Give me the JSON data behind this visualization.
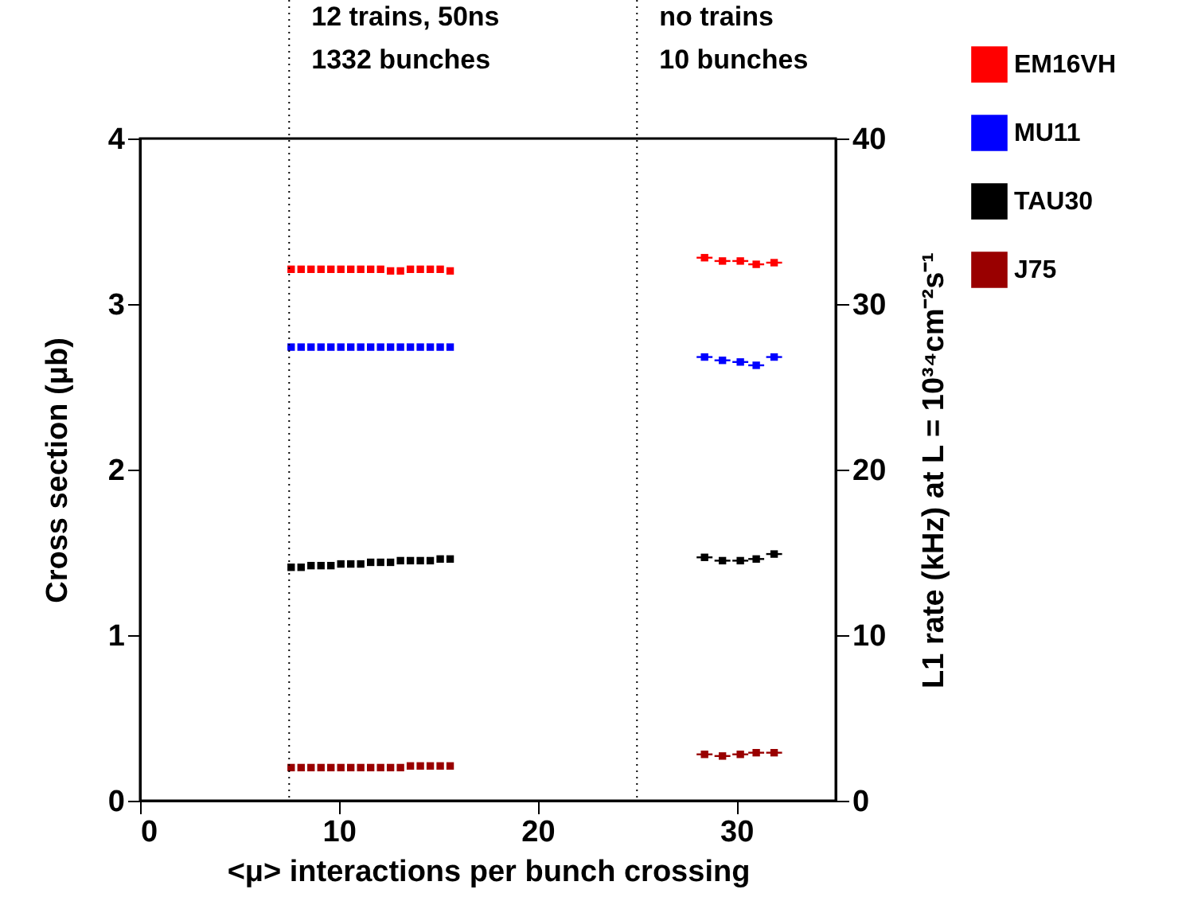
{
  "chart_data": {
    "type": "scatter",
    "xlabel": "<μ> interactions per bunch crossing",
    "ylabel": "Cross section (μb)",
    "y2label": "L1 rate (kHz) at L = 10³⁴cm⁻²s⁻¹",
    "x": [
      7.6,
      8.1,
      8.6,
      9.1,
      9.6,
      10.1,
      10.6,
      11.1,
      11.6,
      12.1,
      12.6,
      13.1,
      13.6,
      14.1,
      14.6,
      15.1,
      15.6,
      28.4,
      29.3,
      30.2,
      31.0,
      31.9
    ],
    "xlim": [
      0,
      35
    ],
    "xticks": [
      0,
      10,
      20,
      30
    ],
    "ylim": [
      0,
      4
    ],
    "yticks": [
      0,
      1,
      2,
      3,
      4
    ],
    "y2lim": [
      0,
      40
    ],
    "y2ticks": [
      0,
      10,
      20,
      30,
      40
    ],
    "marker": "square",
    "grid": false,
    "legend": "right",
    "series": [
      {
        "name": "EM16VH",
        "color": "#ff0000",
        "values": [
          3.21,
          3.21,
          3.21,
          3.21,
          3.21,
          3.21,
          3.21,
          3.21,
          3.21,
          3.21,
          3.2,
          3.2,
          3.21,
          3.21,
          3.21,
          3.21,
          3.2,
          3.28,
          3.26,
          3.26,
          3.24,
          3.25
        ],
        "xerrors": [
          null,
          null,
          null,
          null,
          null,
          null,
          null,
          null,
          null,
          null,
          null,
          null,
          null,
          null,
          null,
          null,
          null,
          0.4,
          0.4,
          0.4,
          0.4,
          0.4
        ]
      },
      {
        "name": "MU11",
        "color": "#0000ff",
        "values": [
          2.74,
          2.74,
          2.74,
          2.74,
          2.74,
          2.74,
          2.74,
          2.74,
          2.74,
          2.74,
          2.74,
          2.74,
          2.74,
          2.74,
          2.74,
          2.74,
          2.74,
          2.68,
          2.66,
          2.65,
          2.63,
          2.68
        ],
        "xerrors": [
          null,
          null,
          null,
          null,
          null,
          null,
          null,
          null,
          null,
          null,
          null,
          null,
          null,
          null,
          null,
          null,
          null,
          0.4,
          0.4,
          0.4,
          0.4,
          0.4
        ]
      },
      {
        "name": "TAU30",
        "color": "#000000",
        "values": [
          1.41,
          1.41,
          1.42,
          1.42,
          1.42,
          1.43,
          1.43,
          1.43,
          1.44,
          1.44,
          1.44,
          1.45,
          1.45,
          1.45,
          1.45,
          1.46,
          1.46,
          1.47,
          1.45,
          1.45,
          1.46,
          1.49
        ],
        "xerrors": [
          null,
          null,
          null,
          null,
          null,
          null,
          null,
          null,
          null,
          null,
          null,
          null,
          null,
          null,
          null,
          null,
          null,
          0.4,
          0.4,
          0.4,
          0.4,
          0.4
        ]
      },
      {
        "name": "J75",
        "color": "#990000",
        "values": [
          0.2,
          0.2,
          0.2,
          0.2,
          0.2,
          0.2,
          0.2,
          0.2,
          0.2,
          0.2,
          0.2,
          0.2,
          0.21,
          0.21,
          0.21,
          0.21,
          0.21,
          0.28,
          0.27,
          0.28,
          0.29,
          0.29
        ],
        "xerrors": [
          null,
          null,
          null,
          null,
          null,
          null,
          null,
          null,
          null,
          null,
          null,
          null,
          null,
          null,
          null,
          null,
          null,
          0.4,
          0.4,
          0.4,
          0.4,
          0.4
        ]
      }
    ],
    "ref_lines": [
      {
        "axis": "x",
        "value": 7.5,
        "label": "12 trains, 50ns\n1332 bunches",
        "line_style": "dotted",
        "color": "#000000"
      },
      {
        "axis": "x",
        "value": 25,
        "label": "no trains\n10 bunches",
        "line_style": "dotted",
        "color": "#000000"
      }
    ]
  }
}
